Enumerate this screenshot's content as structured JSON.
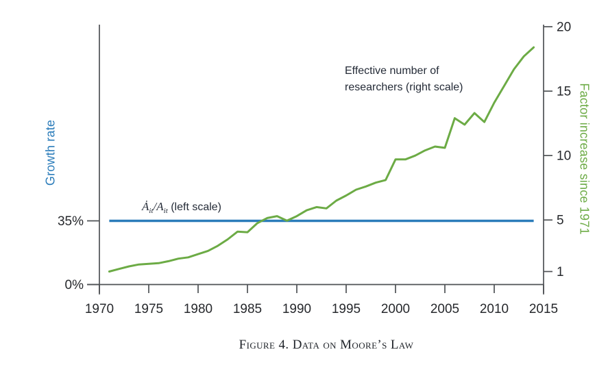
{
  "figure": {
    "caption": "Figure 4. Data on Moore’s Law"
  },
  "annotations": {
    "researchers_label": {
      "line1": "Effective number of",
      "line2": "researchers (right scale)"
    },
    "growth_label": {
      "a_dot": "Ȧ",
      "sub1": "it",
      "slash": "/",
      "a": "A",
      "sub2": "it",
      "suffix": " (left scale)"
    }
  },
  "chart_data": {
    "type": "line",
    "title": "",
    "grid": false,
    "legend": "none (series labeled by inline annotations)",
    "x_axis": {
      "label": "",
      "range": [
        1970,
        2015
      ],
      "ticks": [
        1970,
        1975,
        1980,
        1985,
        1990,
        1995,
        2000,
        2005,
        2010,
        2015
      ]
    },
    "left_axis": {
      "label": "Growth rate",
      "color": "#2b7cba",
      "ticks": [
        {
          "value": 35,
          "label": "35%"
        },
        {
          "value": 0,
          "label": "0%"
        }
      ]
    },
    "right_axis": {
      "label": "Factor increase since 1971",
      "color": "#6cab45",
      "range": [
        0,
        20
      ],
      "ticks": [
        1,
        5,
        10,
        15,
        20
      ]
    },
    "x": [
      1971,
      1972,
      1973,
      1974,
      1975,
      1976,
      1977,
      1978,
      1979,
      1980,
      1981,
      1982,
      1983,
      1984,
      1985,
      1986,
      1987,
      1988,
      1989,
      1990,
      1991,
      1992,
      1993,
      1994,
      1995,
      1996,
      1997,
      1998,
      1999,
      2000,
      2001,
      2002,
      2003,
      2004,
      2005,
      2006,
      2007,
      2008,
      2009,
      2010,
      2011,
      2012,
      2013,
      2014
    ],
    "series": [
      {
        "name": "Ȧit/Ait (left scale)",
        "axis": "left",
        "style": "horizontal-line",
        "value_percent": 35,
        "x_span": [
          1971,
          2014
        ],
        "color": "#2b7cba"
      },
      {
        "name": "Effective number of researchers (right scale)",
        "axis": "right",
        "style": "line",
        "color": "#6cab45",
        "values": [
          1.0,
          1.2,
          1.4,
          1.55,
          1.6,
          1.65,
          1.8,
          2.0,
          2.1,
          2.35,
          2.6,
          3.0,
          3.5,
          4.1,
          4.05,
          4.75,
          5.15,
          5.3,
          4.95,
          5.3,
          5.75,
          6.0,
          5.9,
          6.5,
          6.9,
          7.35,
          7.6,
          7.9,
          8.1,
          9.7,
          9.7,
          10.0,
          10.4,
          10.7,
          10.6,
          12.9,
          12.4,
          13.3,
          12.6,
          14.1,
          15.4,
          16.7,
          17.7,
          18.4
        ]
      }
    ]
  }
}
